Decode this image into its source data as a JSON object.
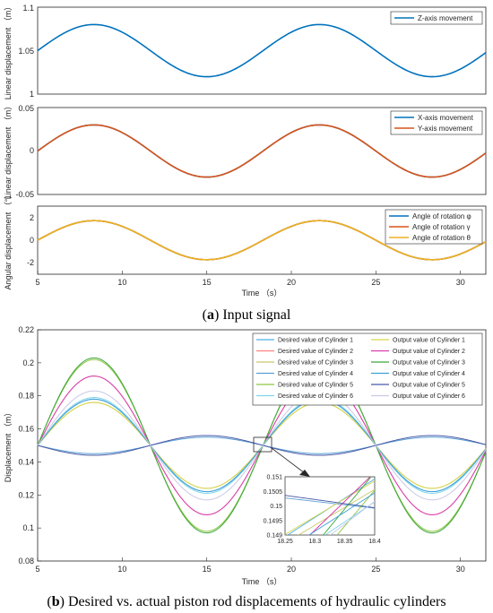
{
  "captions": {
    "a_letter": "a",
    "a_text": " Input signal",
    "b_letter": "b",
    "b_text": " Desired vs. actual piston rod displacements of hydraulic cylinders"
  },
  "chart_data": [
    {
      "id": "p1",
      "type": "line",
      "ylabel": "Linear displacement （m）",
      "xlim": [
        5,
        31.5
      ],
      "ylim": [
        1,
        1.1
      ],
      "yticks": [
        "1",
        "1.05",
        "1.1"
      ],
      "x": [
        5,
        8.33,
        11.67,
        15,
        18.33,
        21.67,
        25,
        28.33,
        31.5
      ],
      "series": [
        {
          "name": "Z-axis movement",
          "color": "#0072bd",
          "values": [
            1.05,
            1.08,
            1.05,
            1.02,
            1.05,
            1.08,
            1.05,
            1.02,
            1.05
          ]
        }
      ],
      "legend": "top-right",
      "grid": false
    },
    {
      "id": "p2",
      "type": "line",
      "ylabel": "Linear displacement （m）",
      "xlim": [
        5,
        31.5
      ],
      "ylim": [
        -0.05,
        0.05
      ],
      "yticks": [
        "-0.05",
        "0",
        "0.05"
      ],
      "x": [
        5,
        8.33,
        11.67,
        15,
        18.33,
        21.67,
        25,
        28.33,
        31.5
      ],
      "series": [
        {
          "name": "X-axis movement",
          "color": "#0072bd",
          "values": [
            0,
            0.03,
            0,
            -0.03,
            0,
            0.03,
            0,
            -0.03,
            0
          ]
        },
        {
          "name": "Y-axis movement",
          "color": "#d95319",
          "values": [
            0,
            0.03,
            0,
            -0.03,
            0,
            0.03,
            0,
            -0.03,
            0
          ]
        }
      ],
      "legend": "top-right",
      "grid": false
    },
    {
      "id": "p3",
      "type": "line",
      "ylabel": "Angular displacement （°）",
      "xlabel": "Time （s）",
      "xlim": [
        5,
        31.5
      ],
      "ylim": [
        -3,
        3
      ],
      "yticks": [
        "-2",
        "0",
        "2"
      ],
      "xticks": [
        "5",
        "10",
        "15",
        "20",
        "25",
        "30"
      ],
      "x": [
        5,
        8.33,
        11.67,
        15,
        18.33,
        21.67,
        25,
        28.33,
        31.5
      ],
      "series": [
        {
          "name": "Angle of rotation φ",
          "color": "#0072bd",
          "values": [
            0,
            1.72,
            0,
            -1.72,
            0,
            1.72,
            0,
            -1.72,
            0
          ]
        },
        {
          "name": "Angle of rotation γ",
          "color": "#d95319",
          "values": [
            0,
            1.72,
            0,
            -1.72,
            0,
            1.72,
            0,
            -1.72,
            0
          ]
        },
        {
          "name": "Angle of rotation θ",
          "color": "#edb120",
          "values": [
            0,
            1.72,
            0,
            -1.72,
            0,
            1.72,
            0,
            -1.72,
            0
          ]
        }
      ],
      "legend": "top-right",
      "grid": false
    },
    {
      "id": "p4",
      "type": "line",
      "ylabel": "Displacement （m）",
      "xlabel": "Time （s）",
      "xlim": [
        5,
        31.5
      ],
      "ylim": [
        0.08,
        0.22
      ],
      "yticks": [
        "0.08",
        "0.1",
        "0.12",
        "0.14",
        "0.16",
        "0.18",
        "0.2",
        "0.22"
      ],
      "xticks": [
        "5",
        "10",
        "15",
        "20",
        "25",
        "30"
      ],
      "x": [
        5,
        8.33,
        11.67,
        15,
        18.33,
        21.67,
        25,
        28.33,
        31.5
      ],
      "series": [
        {
          "name": "Desired value of Cylinder 1",
          "color": "#4fb0e8",
          "values": [
            0.15,
            0.178,
            0.15,
            0.122,
            0.15,
            0.178,
            0.15,
            0.122,
            0.15
          ]
        },
        {
          "name": "Desired value of Cylinder 2",
          "color": "#ff8080",
          "values": [
            0.15,
            0.192,
            0.15,
            0.108,
            0.15,
            0.192,
            0.15,
            0.108,
            0.15
          ]
        },
        {
          "name": "Desired value of Cylinder 3",
          "color": "#c8c86a",
          "values": [
            0.15,
            0.176,
            0.15,
            0.124,
            0.15,
            0.176,
            0.15,
            0.124,
            0.15
          ]
        },
        {
          "name": "Desired value of Cylinder 4",
          "color": "#5a9fd4",
          "values": [
            0.15,
            0.145,
            0.15,
            0.155,
            0.15,
            0.145,
            0.15,
            0.155,
            0.15
          ]
        },
        {
          "name": "Desired value of Cylinder 5",
          "color": "#8cc63f",
          "values": [
            0.15,
            0.202,
            0.15,
            0.098,
            0.15,
            0.202,
            0.15,
            0.098,
            0.15
          ]
        },
        {
          "name": "Desired value of Cylinder 6",
          "color": "#7fd4e8",
          "values": [
            0.15,
            0.179,
            0.15,
            0.121,
            0.15,
            0.179,
            0.15,
            0.121,
            0.15
          ]
        },
        {
          "name": "Output value of Cylinder 1",
          "color": "#d6d64a",
          "values": [
            0.15,
            0.176,
            0.15,
            0.128,
            0.15,
            0.176,
            0.15,
            0.128,
            0.15
          ]
        },
        {
          "name": "Output value of Cylinder 2",
          "color": "#d63fb0",
          "values": [
            0.15,
            0.192,
            0.15,
            0.11,
            0.15,
            0.192,
            0.15,
            0.11,
            0.15
          ]
        },
        {
          "name": "Output value of Cylinder 3",
          "color": "#3aa63a",
          "values": [
            0.15,
            0.203,
            0.15,
            0.097,
            0.15,
            0.203,
            0.15,
            0.097,
            0.15
          ]
        },
        {
          "name": "Output value of Cylinder 4",
          "color": "#3fa0d6",
          "values": [
            0.15,
            0.178,
            0.15,
            0.124,
            0.15,
            0.178,
            0.15,
            0.124,
            0.15
          ]
        },
        {
          "name": "Output value of Cylinder 5",
          "color": "#4a5aa6",
          "values": [
            0.15,
            0.144,
            0.15,
            0.158,
            0.15,
            0.144,
            0.15,
            0.158,
            0.15
          ]
        },
        {
          "name": "Output value of Cylinder 6",
          "color": "#c8c8e8",
          "values": [
            0.15,
            0.183,
            0.15,
            0.117,
            0.15,
            0.183,
            0.15,
            0.117,
            0.15
          ]
        }
      ],
      "legend": "top-right",
      "grid": false,
      "inset": {
        "xlim": [
          18.25,
          18.4
        ],
        "ylim": [
          0.149,
          0.151
        ],
        "xticks": [
          "18.25",
          "18.3",
          "18.35",
          "18.4"
        ],
        "yticks": [
          "0.149",
          "0.1495",
          "0.15",
          "0.1505",
          "0.151"
        ]
      }
    }
  ]
}
